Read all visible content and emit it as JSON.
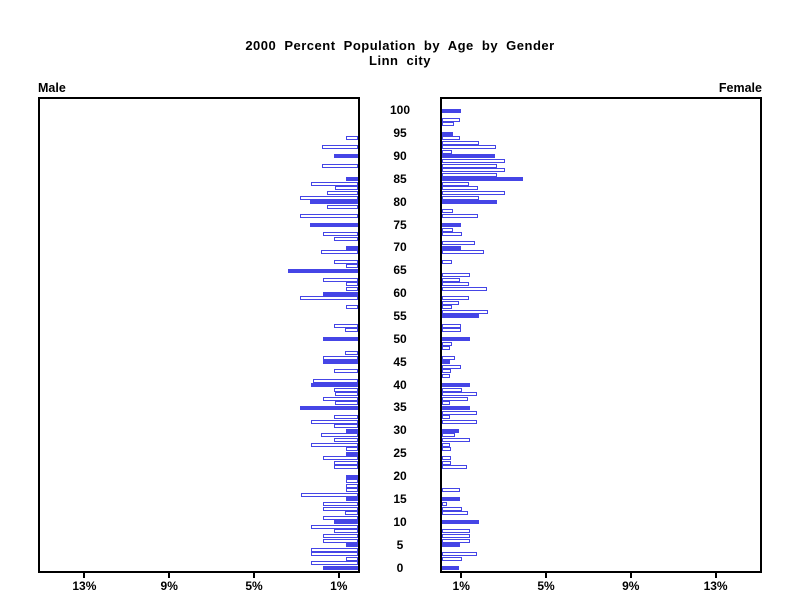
{
  "title": "2000 Percent Population by Age by Gender",
  "subtitle": "Linn city",
  "left_header": "Male",
  "right_header": "Female",
  "colors": {
    "bar_blue": "#4545e6",
    "axis": "#000000",
    "background": "#ffffff"
  },
  "chart_data": {
    "type": "bar",
    "variant": "population-pyramid",
    "title": "2000 Percent Population by Age by Gender",
    "subtitle": "Linn city",
    "orientation": "horizontal, male bars grow left, female bars grow right",
    "bar_style_rule": "ages divisible by 5 are solid blue; other ages are white with blue outline; zero values have no bar",
    "age_axis": {
      "min": 0,
      "max": 100,
      "tick_step": 5,
      "tick_labels": [
        "0",
        "5",
        "10",
        "15",
        "20",
        "25",
        "30",
        "35",
        "40",
        "45",
        "50",
        "55",
        "60",
        "65",
        "70",
        "75",
        "80",
        "85",
        "90",
        "95",
        "100"
      ]
    },
    "x_axis": {
      "unit": "percent of population",
      "tick_values": [
        1,
        5,
        9,
        13
      ],
      "tick_labels": [
        "1%",
        "5%",
        "9%",
        "13%"
      ],
      "max": 15.2,
      "grid": false
    },
    "series": [
      {
        "name": "Male",
        "side": "left",
        "ages": "index equals age 0..100",
        "values": [
          1.65,
          2.2,
          0.55,
          2.2,
          2.2,
          0.55,
          1.65,
          1.65,
          1.13,
          2.2,
          1.13,
          1.65,
          0.63,
          1.65,
          1.65,
          0.55,
          2.7,
          0.55,
          0.55,
          0.55,
          0.55,
          0,
          1.13,
          1.13,
          1.65,
          0.55,
          0.55,
          2.2,
          1.13,
          1.73,
          0.55,
          1.13,
          2.2,
          1.13,
          0,
          2.75,
          1.1,
          1.65,
          1.1,
          1.13,
          2.2,
          2.1,
          0,
          1.13,
          0,
          1.65,
          1.65,
          0.63,
          0,
          0,
          1.65,
          0,
          0.63,
          1.13,
          0,
          0,
          0,
          0.55,
          0,
          2.75,
          1.65,
          0.55,
          0.55,
          1.65,
          0,
          3.3,
          0.55,
          1.13,
          0,
          1.73,
          0.55,
          0,
          1.13,
          1.65,
          0,
          2.25,
          0,
          2.75,
          0,
          1.45,
          2.25,
          2.75,
          1.45,
          1.07,
          2.2,
          0.55,
          0,
          0,
          1.68,
          0,
          1.13,
          0,
          1.68,
          0,
          0.55,
          0,
          0,
          0,
          0,
          0,
          0
        ]
      },
      {
        "name": "Female",
        "side": "right",
        "ages": "index equals age 0..100",
        "values": [
          0.8,
          0,
          0.94,
          1.65,
          0,
          0.87,
          1.34,
          1.34,
          1.34,
          0,
          1.73,
          0,
          1.23,
          0.94,
          0.25,
          0.87,
          0,
          0.87,
          0,
          0,
          0,
          0,
          1.18,
          0.44,
          0.44,
          0,
          0.44,
          0.4,
          1.3,
          0.6,
          0.8,
          0,
          1.65,
          0.36,
          1.65,
          1.3,
          0.4,
          1.23,
          1.65,
          0.94,
          1.3,
          0,
          0.4,
          0.44,
          0.9,
          0.4,
          0.63,
          0,
          0.36,
          0.47,
          1.3,
          0,
          0.9,
          0.9,
          0,
          1.73,
          2.15,
          0.47,
          0.8,
          1.26,
          0,
          2.1,
          1.26,
          0.86,
          1.33,
          0,
          0,
          0.47,
          0,
          2.0,
          0.9,
          1.54,
          0,
          0.94,
          0.5,
          0.9,
          0,
          1.7,
          0.5,
          0,
          2.6,
          1.73,
          2.95,
          1.7,
          1.26,
          3.8,
          2.6,
          2.95,
          2.6,
          2.95,
          2.5,
          0.45,
          2.55,
          1.73,
          0.86,
          0.5,
          0,
          0.55,
          0.83,
          0,
          0.9
        ]
      }
    ]
  }
}
